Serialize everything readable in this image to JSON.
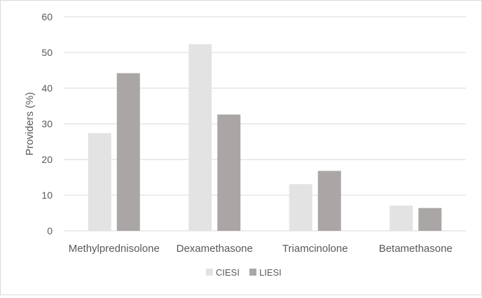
{
  "chart_data": {
    "type": "bar",
    "categories": [
      "Methylprednisolone",
      "Dexamethasone",
      "Triamcinolone",
      "Betamethasone"
    ],
    "series": [
      {
        "name": "CIESI",
        "values": [
          27.4,
          52.3,
          13.1,
          7.1
        ],
        "color": "#e4e3e3"
      },
      {
        "name": "LIESI",
        "values": [
          44.2,
          32.6,
          16.8,
          6.4
        ],
        "color": "#aaa6a5"
      }
    ],
    "ylabel": "Providers (%)",
    "xlabel": "",
    "title": "",
    "ylim": [
      0,
      60
    ],
    "yticks": [
      0,
      10,
      20,
      30,
      40,
      50,
      60
    ],
    "grid": true,
    "legend_position": "bottom-center"
  }
}
